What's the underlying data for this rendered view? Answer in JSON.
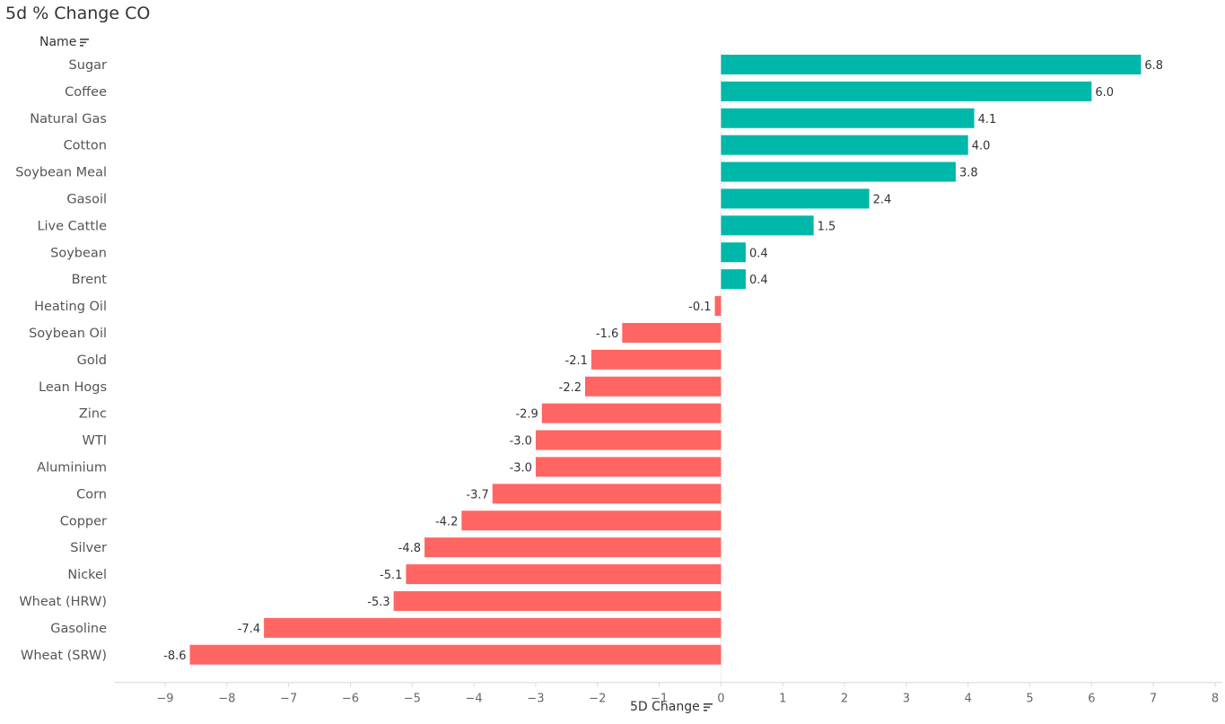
{
  "title": "5d % Change CO",
  "row_header": "Name",
  "colors": {
    "positive": "#00b8a9",
    "negative": "#ff6562",
    "grid": "#e6e6e6"
  },
  "icons": {
    "sort": "sort-icon"
  },
  "chart_data": {
    "type": "bar",
    "orientation": "horizontal",
    "xlabel": "5D Change",
    "ylabel": "Name",
    "xlim": [
      -9,
      8
    ],
    "xticks": [
      -9,
      -8,
      -7,
      -6,
      -5,
      -4,
      -3,
      -2,
      -1,
      0,
      1,
      2,
      3,
      4,
      5,
      6,
      7,
      8
    ],
    "categories": [
      "Sugar",
      "Coffee",
      "Natural Gas",
      "Cotton",
      "Soybean Meal",
      "Gasoil",
      "Live Cattle",
      "Soybean",
      "Brent",
      "Heating Oil",
      "Soybean Oil",
      "Gold",
      "Lean Hogs",
      "Zinc",
      "WTI",
      "Aluminium",
      "Corn",
      "Copper",
      "Silver",
      "Nickel",
      "Wheat (HRW)",
      "Gasoline",
      "Wheat (SRW)"
    ],
    "values": [
      6.8,
      6.0,
      4.1,
      4.0,
      3.8,
      2.4,
      1.5,
      0.4,
      0.4,
      -0.1,
      -1.6,
      -2.1,
      -2.2,
      -2.9,
      -3.0,
      -3.0,
      -3.7,
      -4.2,
      -4.8,
      -5.1,
      -5.3,
      -7.4,
      -8.6
    ],
    "labels": [
      "6.8",
      "6.0",
      "4.1",
      "4.0",
      "3.8",
      "2.4",
      "1.5",
      "0.4",
      "0.4",
      "-0.1",
      "-1.6",
      "-2.1",
      "-2.2",
      "-2.9",
      "-3.0",
      "-3.0",
      "-3.7",
      "-4.2",
      "-4.8",
      "-5.1",
      "-5.3",
      "-7.4",
      "-8.6"
    ],
    "grid": false
  }
}
